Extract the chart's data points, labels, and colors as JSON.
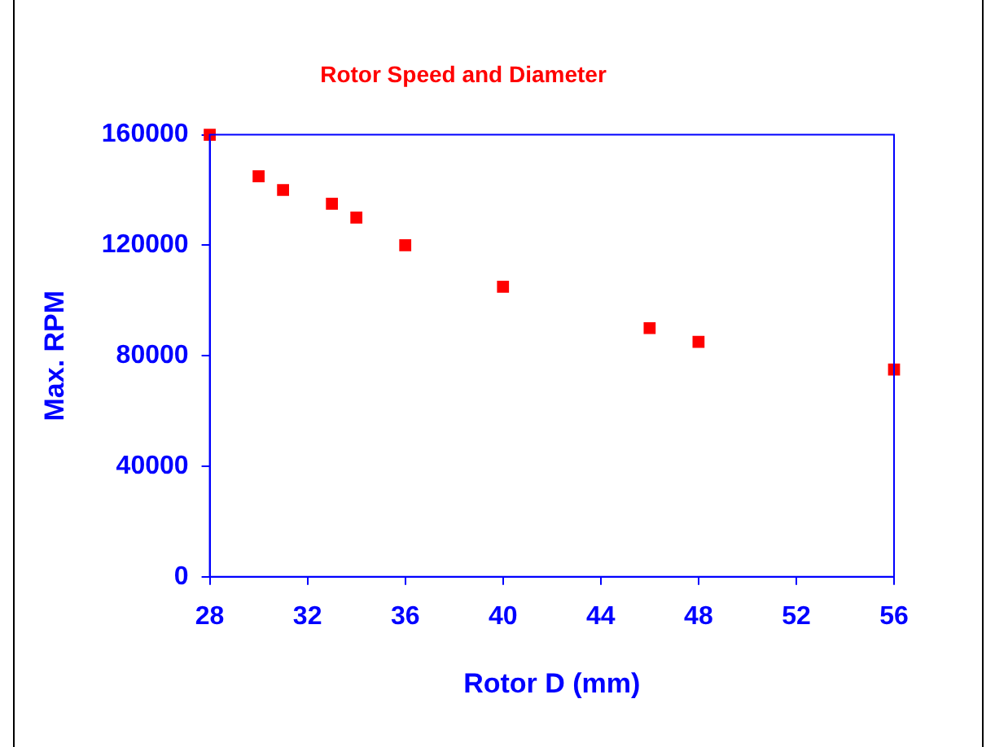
{
  "chart_data": {
    "type": "scatter",
    "title": "Rotor Speed and Diameter",
    "xlabel": "Rotor D (mm)",
    "ylabel": "Max. RPM",
    "x": [
      28,
      30,
      31,
      33,
      34,
      36,
      40,
      46,
      48,
      56
    ],
    "series": [
      {
        "color": "#ff0000",
        "values": [
          160000,
          145000,
          140000,
          135000,
          130000,
          120000,
          105000,
          90000,
          85000,
          75000
        ]
      }
    ],
    "xlim": [
      28,
      56
    ],
    "xticks": [
      28,
      32,
      36,
      40,
      44,
      48,
      52,
      56
    ],
    "ylim": [
      0,
      160000
    ],
    "yticks": [
      0,
      40000,
      80000,
      120000,
      160000
    ],
    "grid": false,
    "legend": false,
    "marker": "square"
  }
}
